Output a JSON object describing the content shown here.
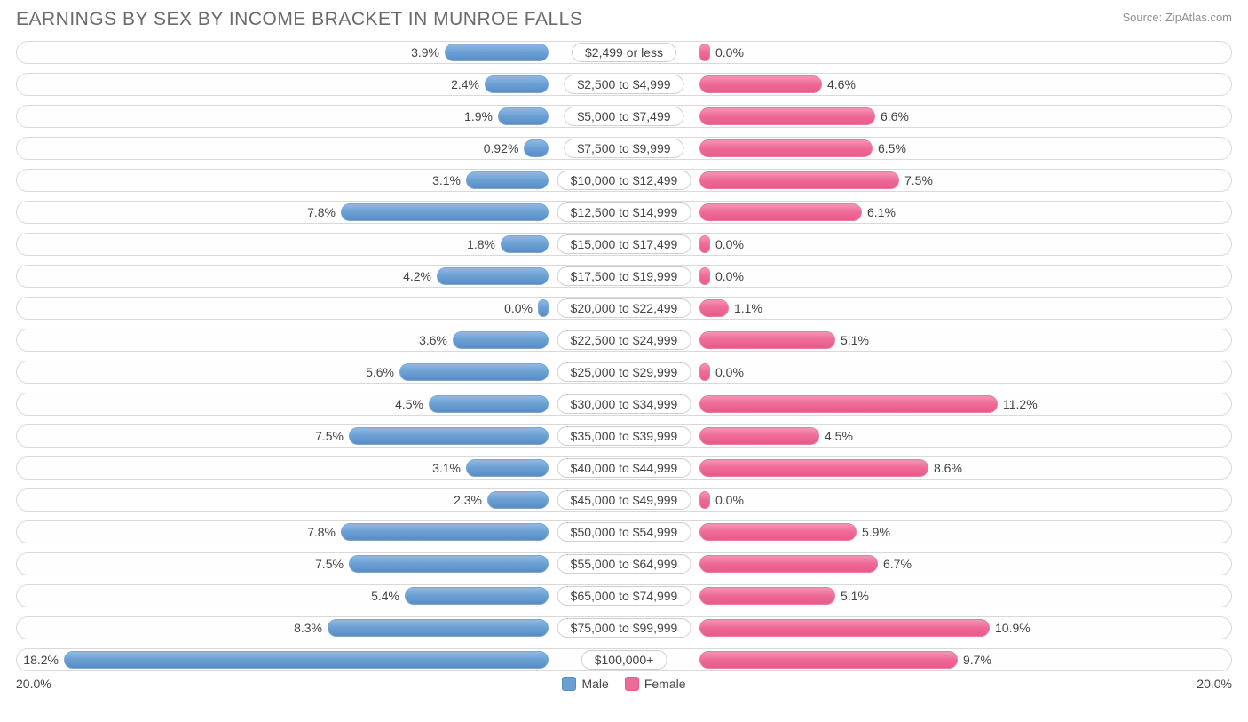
{
  "title": "EARNINGS BY SEX BY INCOME BRACKET IN MUNROE FALLS",
  "source": "Source: ZipAtlas.com",
  "chart": {
    "type": "diverging-bar",
    "max_percent": 20.0,
    "axis_left_label": "20.0%",
    "axis_right_label": "20.0%",
    "male_color": "#6a9fd4",
    "female_color": "#ee6a98",
    "track_border_color": "#d9d9d9",
    "background_color": "#ffffff",
    "value_font_size": 14,
    "title_font_size": 21,
    "title_color": "#6b6b6b",
    "value_color": "#444444",
    "rows": [
      {
        "category": "$2,499 or less",
        "male": 3.9,
        "male_label": "3.9%",
        "female": 0.0,
        "female_label": "0.0%"
      },
      {
        "category": "$2,500 to $4,999",
        "male": 2.4,
        "male_label": "2.4%",
        "female": 4.6,
        "female_label": "4.6%"
      },
      {
        "category": "$5,000 to $7,499",
        "male": 1.9,
        "male_label": "1.9%",
        "female": 6.6,
        "female_label": "6.6%"
      },
      {
        "category": "$7,500 to $9,999",
        "male": 0.92,
        "male_label": "0.92%",
        "female": 6.5,
        "female_label": "6.5%"
      },
      {
        "category": "$10,000 to $12,499",
        "male": 3.1,
        "male_label": "3.1%",
        "female": 7.5,
        "female_label": "7.5%"
      },
      {
        "category": "$12,500 to $14,999",
        "male": 7.8,
        "male_label": "7.8%",
        "female": 6.1,
        "female_label": "6.1%"
      },
      {
        "category": "$15,000 to $17,499",
        "male": 1.8,
        "male_label": "1.8%",
        "female": 0.0,
        "female_label": "0.0%"
      },
      {
        "category": "$17,500 to $19,999",
        "male": 4.2,
        "male_label": "4.2%",
        "female": 0.0,
        "female_label": "0.0%"
      },
      {
        "category": "$20,000 to $22,499",
        "male": 0.0,
        "male_label": "0.0%",
        "female": 1.1,
        "female_label": "1.1%"
      },
      {
        "category": "$22,500 to $24,999",
        "male": 3.6,
        "male_label": "3.6%",
        "female": 5.1,
        "female_label": "5.1%"
      },
      {
        "category": "$25,000 to $29,999",
        "male": 5.6,
        "male_label": "5.6%",
        "female": 0.0,
        "female_label": "0.0%"
      },
      {
        "category": "$30,000 to $34,999",
        "male": 4.5,
        "male_label": "4.5%",
        "female": 11.2,
        "female_label": "11.2%"
      },
      {
        "category": "$35,000 to $39,999",
        "male": 7.5,
        "male_label": "7.5%",
        "female": 4.5,
        "female_label": "4.5%"
      },
      {
        "category": "$40,000 to $44,999",
        "male": 3.1,
        "male_label": "3.1%",
        "female": 8.6,
        "female_label": "8.6%"
      },
      {
        "category": "$45,000 to $49,999",
        "male": 2.3,
        "male_label": "2.3%",
        "female": 0.0,
        "female_label": "0.0%"
      },
      {
        "category": "$50,000 to $54,999",
        "male": 7.8,
        "male_label": "7.8%",
        "female": 5.9,
        "female_label": "5.9%"
      },
      {
        "category": "$55,000 to $64,999",
        "male": 7.5,
        "male_label": "7.5%",
        "female": 6.7,
        "female_label": "6.7%"
      },
      {
        "category": "$65,000 to $74,999",
        "male": 5.4,
        "male_label": "5.4%",
        "female": 5.1,
        "female_label": "5.1%"
      },
      {
        "category": "$75,000 to $99,999",
        "male": 8.3,
        "male_label": "8.3%",
        "female": 10.9,
        "female_label": "10.9%"
      },
      {
        "category": "$100,000+",
        "male": 18.2,
        "male_label": "18.2%",
        "female": 9.7,
        "female_label": "9.7%"
      }
    ]
  },
  "legend": {
    "male": "Male",
    "female": "Female"
  }
}
